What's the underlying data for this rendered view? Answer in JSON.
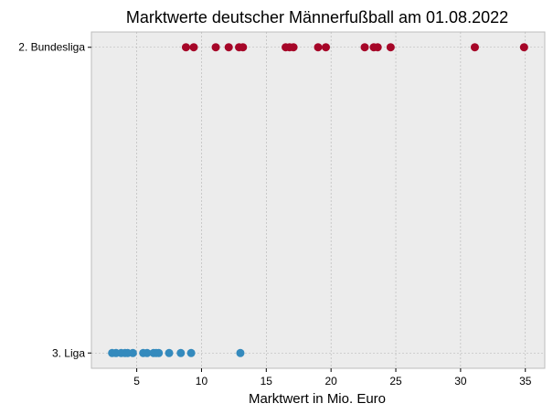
{
  "chart_data": {
    "type": "scatter",
    "title": "Marktwerte deutscher Männerfußball am 01.08.2022",
    "xlabel": "Marktwert in Mio. Euro",
    "ylabel": "",
    "xlim": [
      1.5,
      36.5
    ],
    "x_ticks": [
      5,
      10,
      15,
      20,
      25,
      30,
      35
    ],
    "categories": [
      "3. Liga",
      "2. Bundesliga"
    ],
    "grid": true,
    "background": "#ececec",
    "series": [
      {
        "category": "2. Bundesliga",
        "color": "#a60628",
        "values": [
          8.8,
          9.4,
          11.1,
          12.1,
          12.9,
          13.2,
          16.5,
          16.8,
          17.1,
          19.0,
          19.6,
          22.6,
          23.3,
          23.6,
          24.6,
          31.1,
          34.9
        ]
      },
      {
        "category": "3. Liga",
        "color": "#348abd",
        "values": [
          3.1,
          3.4,
          3.8,
          4.1,
          4.3,
          4.7,
          5.5,
          5.8,
          6.3,
          6.5,
          6.7,
          7.5,
          8.4,
          9.2,
          13.0
        ]
      }
    ]
  }
}
